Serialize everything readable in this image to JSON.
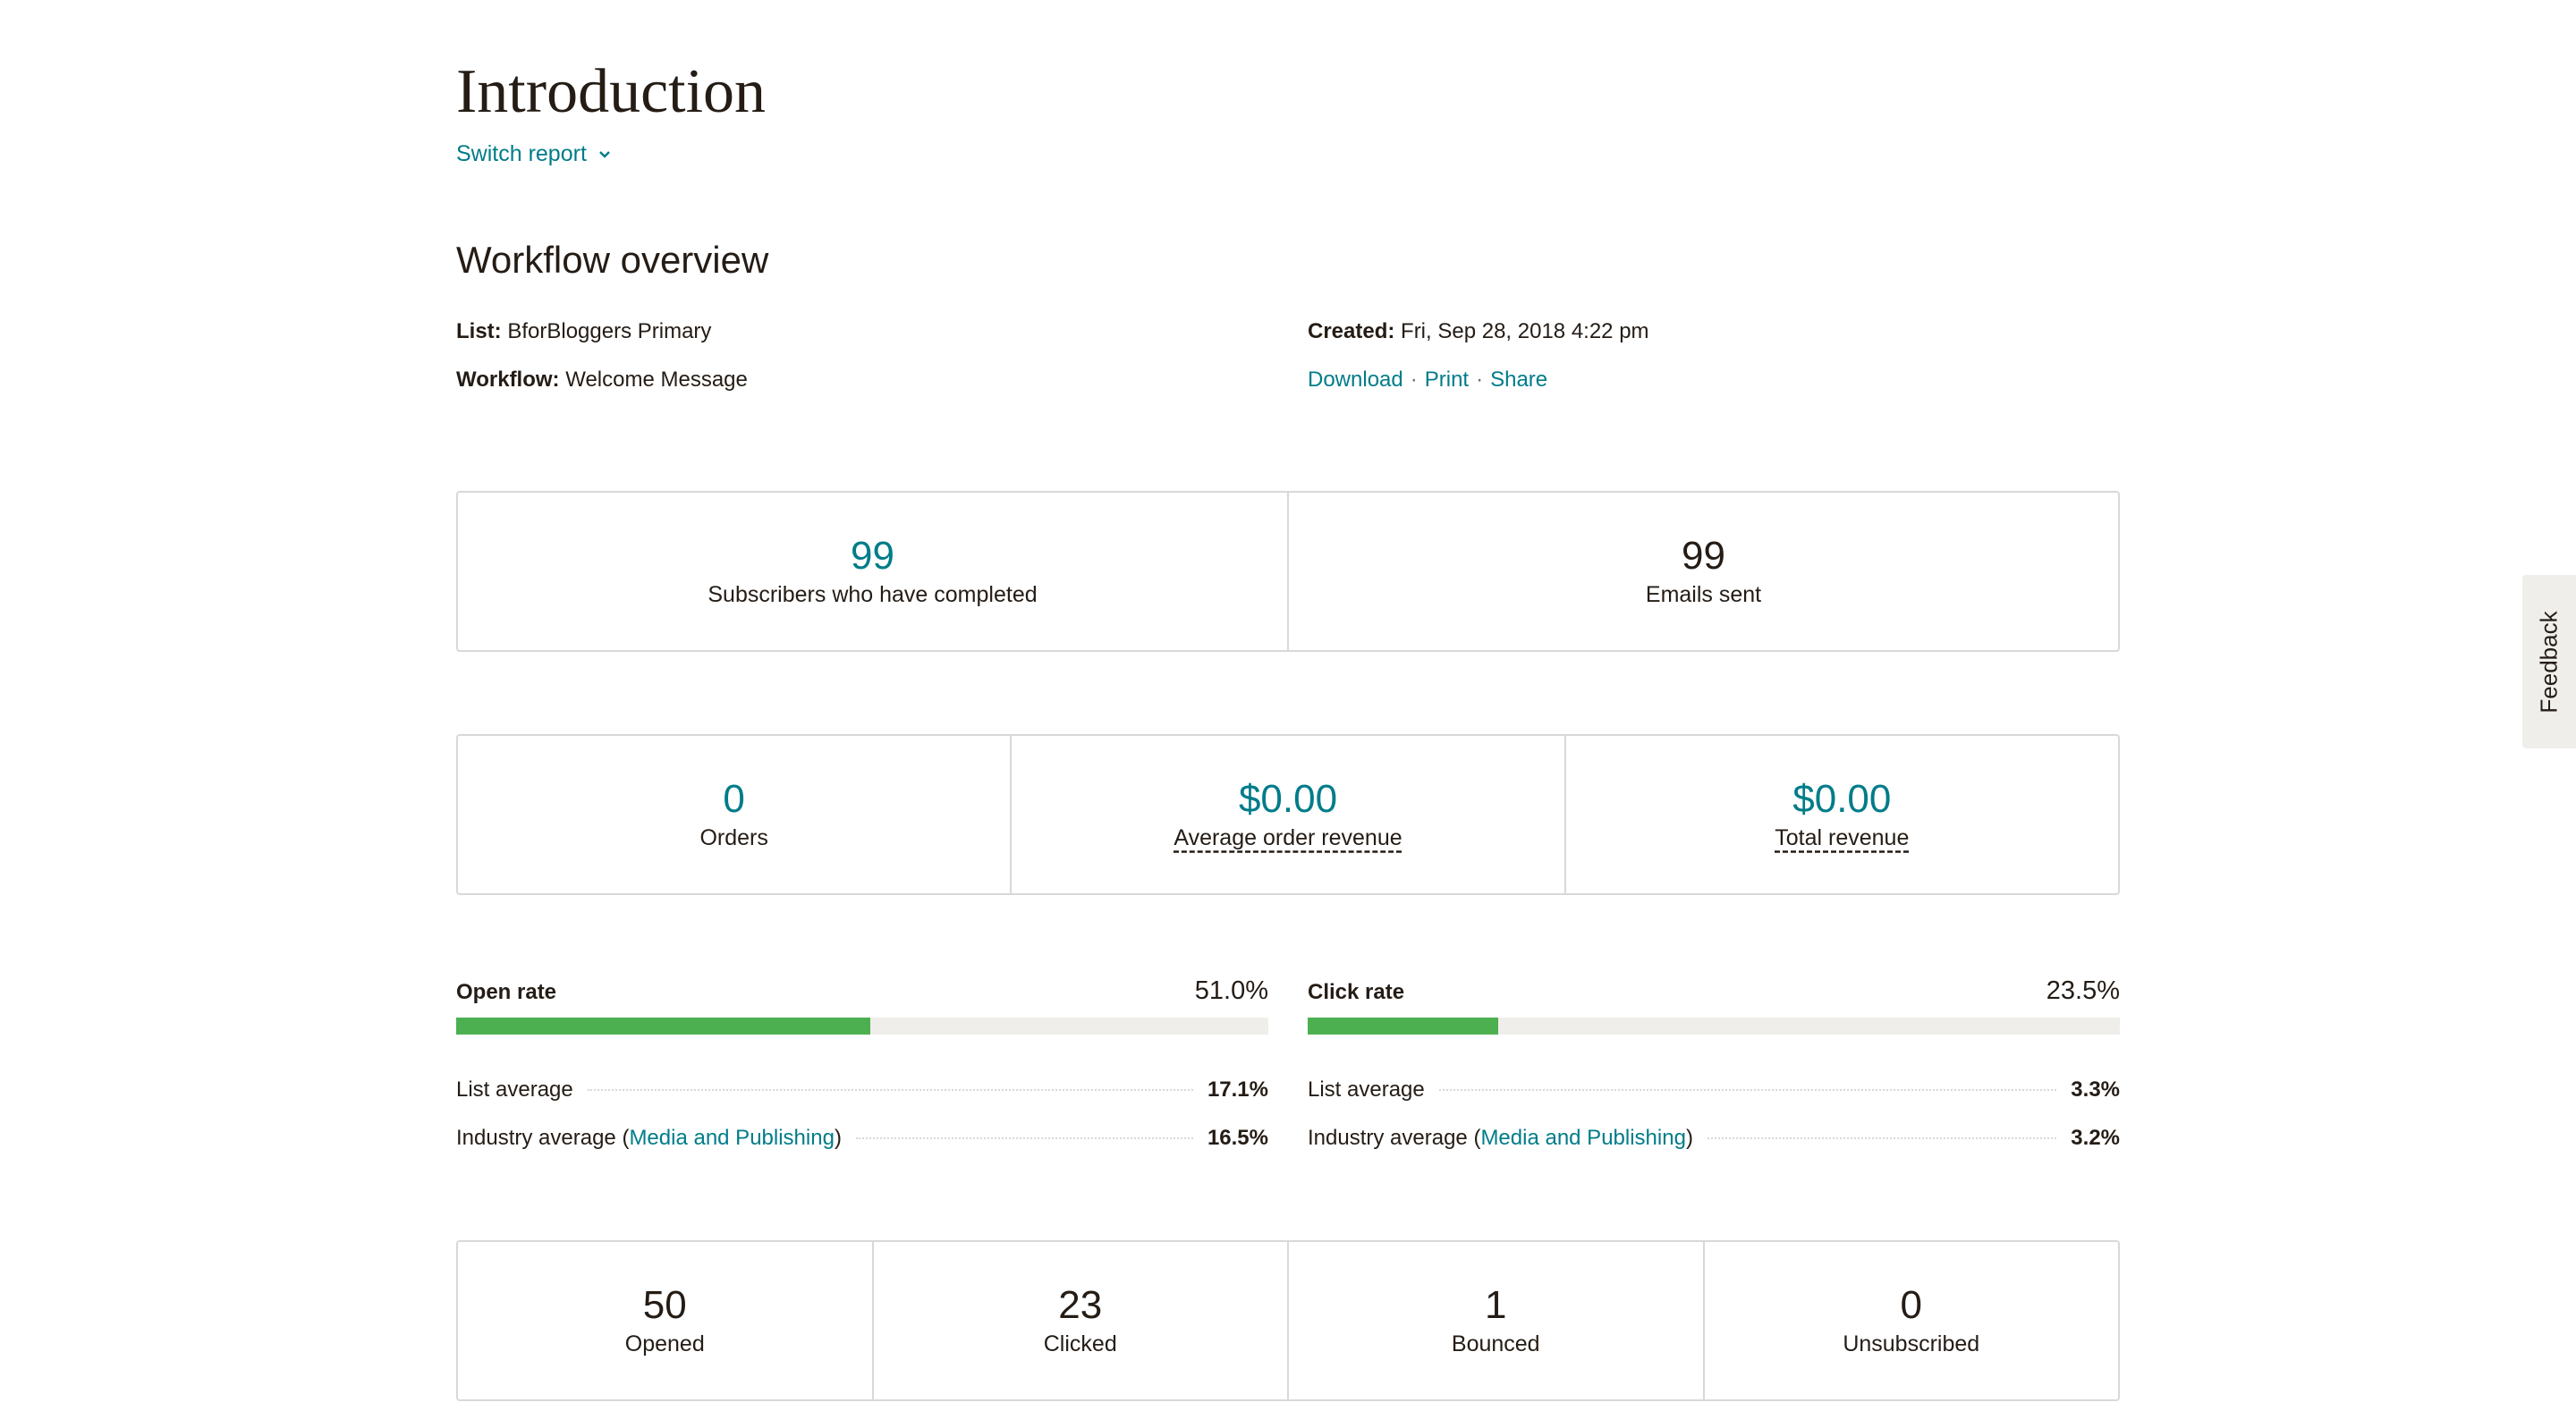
{
  "header": {
    "title": "Introduction",
    "switch_report": "Switch report"
  },
  "overview": {
    "title": "Workflow overview",
    "list_label": "List:",
    "list_value": "BforBloggers Primary",
    "workflow_label": "Workflow:",
    "workflow_value": "Welcome Message",
    "created_label": "Created:",
    "created_value": "Fri, Sep 28, 2018 4:22 pm",
    "links": {
      "download": "Download",
      "print": "Print",
      "share": "Share",
      "separator": "·"
    }
  },
  "summary": [
    {
      "value": "99",
      "label": "Subscribers who have completed"
    },
    {
      "value": "99",
      "label": "Emails sent"
    }
  ],
  "revenue": [
    {
      "value": "0",
      "label": "Orders"
    },
    {
      "value": "$0.00",
      "label": "Average order revenue"
    },
    {
      "value": "$0.00",
      "label": "Total revenue"
    }
  ],
  "open_rate": {
    "label": "Open rate",
    "value": "51.0%",
    "fill": 0.51,
    "list_average_label": "List average",
    "list_average": "17.1%",
    "industry_label": "Industry average (",
    "industry_link": "Media and Publishing",
    "industry_close": ")",
    "industry_average": "16.5%"
  },
  "click_rate": {
    "label": "Click rate",
    "value": "23.5%",
    "fill": 0.235,
    "list_average_label": "List average",
    "list_average": "3.3%",
    "industry_label": "Industry average (",
    "industry_link": "Media and Publishing",
    "industry_close": ")",
    "industry_average": "3.2%"
  },
  "engagement": [
    {
      "value": "50",
      "label": "Opened"
    },
    {
      "value": "23",
      "label": "Clicked"
    },
    {
      "value": "1",
      "label": "Bounced"
    },
    {
      "value": "0",
      "label": "Unsubscribed"
    }
  ],
  "feedback": {
    "label": "Feedback"
  },
  "colors": {
    "accent": "#007c89",
    "bar_fill": "#4cb050",
    "bar_track": "#efeeea",
    "border": "#d8d8d8"
  }
}
